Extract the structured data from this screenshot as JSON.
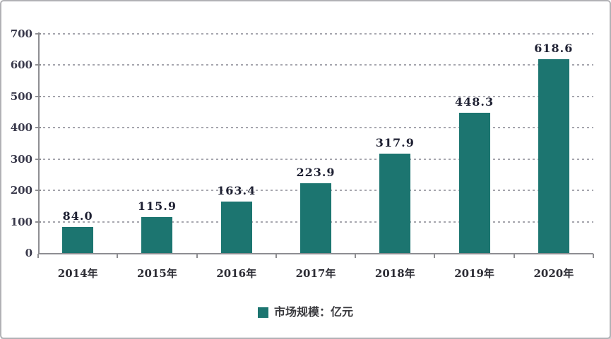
{
  "chart_data": {
    "type": "bar",
    "title": "",
    "categories": [
      "2014年",
      "2015年",
      "2016年",
      "2017年",
      "2018年",
      "2019年",
      "2020年"
    ],
    "values": [
      84.0,
      115.9,
      163.4,
      223.9,
      317.9,
      448.3,
      618.6
    ],
    "value_labels": [
      "84.0",
      "115.9",
      "163.4",
      "223.9",
      "317.9",
      "448.3",
      "618.6"
    ],
    "ytick_labels": [
      "0",
      "100",
      "200",
      "300",
      "400",
      "500",
      "600",
      "700"
    ],
    "ylim": [
      0,
      700
    ],
    "ytick_step": 100,
    "grid": "horizontal-dashed",
    "legend_position": "bottom-center",
    "legend": {
      "label": "市场规模：亿元",
      "swatch_color": "#1c7570"
    },
    "colors": {
      "bar": "#1c7570",
      "axis": "#8e8e92",
      "gridline": "#a6a6ae",
      "value_label": "#1f2133",
      "tick_label": "#38384a"
    }
  },
  "layout_note": "static bar chart image, no title, framed with light gray border"
}
